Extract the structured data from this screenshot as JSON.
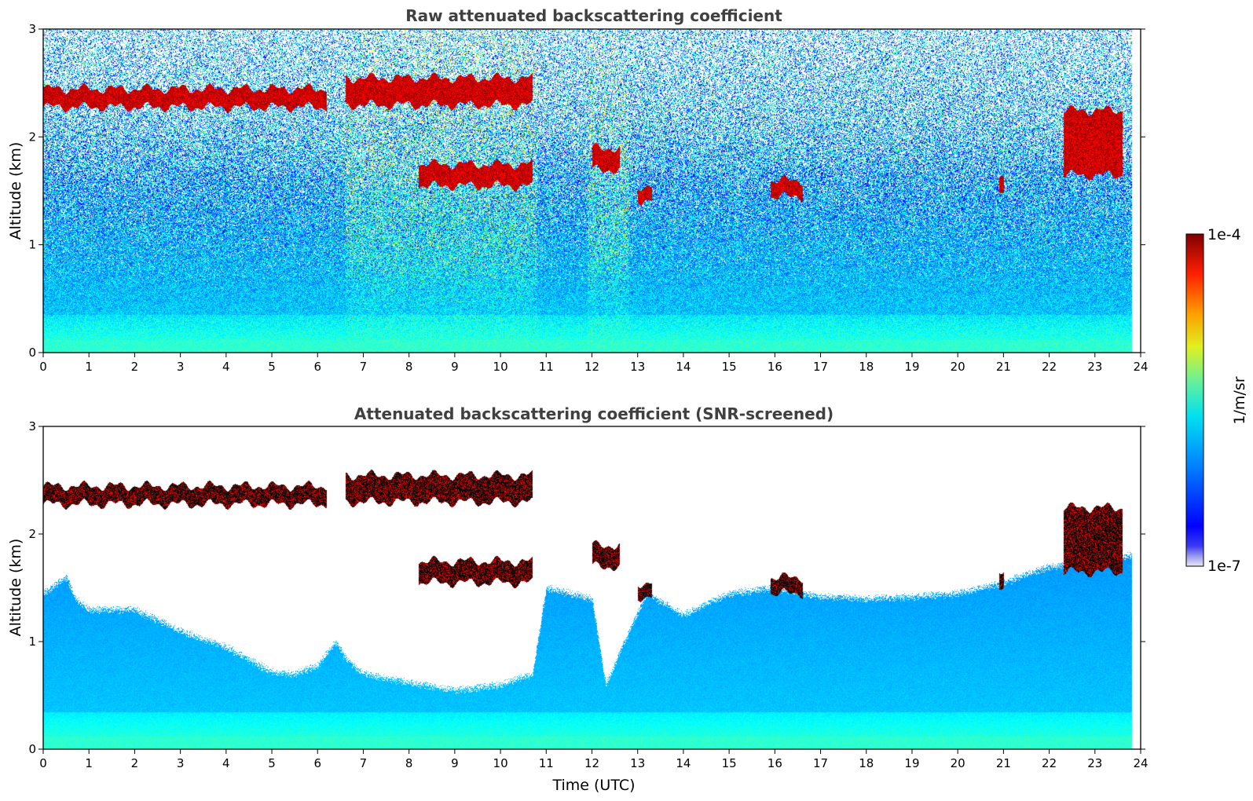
{
  "colormap": {
    "name": "jet",
    "colors": [
      "#00007f",
      "#0000ff",
      "#007fff",
      "#00ffff",
      "#7fff7f",
      "#ffff00",
      "#ff7f00",
      "#ff0000",
      "#7f0000"
    ]
  },
  "chart_data": [
    {
      "type": "heatmap",
      "title": "Raw attenuated backscattering coefficient",
      "xlabel": "",
      "ylabel": "Altitude (km)",
      "xlim": [
        0,
        24
      ],
      "ylim": [
        0,
        3
      ],
      "x_ticks": [
        0,
        1,
        2,
        3,
        4,
        5,
        6,
        7,
        8,
        9,
        10,
        11,
        12,
        13,
        14,
        15,
        16,
        17,
        18,
        19,
        20,
        21,
        22,
        23,
        24
      ],
      "y_ticks": [
        0,
        1,
        2,
        3
      ],
      "data_x_range": [
        0,
        23.8
      ],
      "cloud_layers": [
        {
          "t_start": 0.0,
          "t_end": 6.2,
          "z_km": [
            2.28,
            2.45
          ]
        },
        {
          "t_start": 6.6,
          "t_end": 10.7,
          "z_km": [
            2.3,
            2.55
          ]
        },
        {
          "t_start": 8.2,
          "t_end": 10.7,
          "z_km": [
            1.55,
            1.75
          ]
        },
        {
          "t_start": 12.0,
          "t_end": 12.6,
          "z_km": [
            1.7,
            1.9
          ]
        },
        {
          "t_start": 13.0,
          "t_end": 13.3,
          "z_km": [
            1.42,
            1.55
          ]
        },
        {
          "t_start": 15.9,
          "t_end": 16.6,
          "z_km": [
            1.45,
            1.6
          ]
        },
        {
          "t_start": 20.9,
          "t_end": 21.0,
          "z_km": [
            1.5,
            1.65
          ]
        },
        {
          "t_start": 22.3,
          "t_end": 23.6,
          "z_km": [
            1.65,
            2.25
          ]
        }
      ],
      "screened": false
    },
    {
      "type": "heatmap",
      "title": "Attenuated backscattering coefficient (SNR-screened)",
      "xlabel": "Time (UTC)",
      "ylabel": "Altitude (km)",
      "xlim": [
        0,
        24
      ],
      "ylim": [
        0,
        3
      ],
      "x_ticks": [
        0,
        1,
        2,
        3,
        4,
        5,
        6,
        7,
        8,
        9,
        10,
        11,
        12,
        13,
        14,
        15,
        16,
        17,
        18,
        19,
        20,
        21,
        22,
        23,
        24
      ],
      "y_ticks": [
        0,
        1,
        2,
        3
      ],
      "data_x_range": [
        0,
        23.8
      ],
      "cloud_layers": [
        {
          "t_start": 0.0,
          "t_end": 6.2,
          "z_km": [
            2.28,
            2.45
          ]
        },
        {
          "t_start": 6.6,
          "t_end": 10.7,
          "z_km": [
            2.3,
            2.55
          ]
        },
        {
          "t_start": 8.2,
          "t_end": 10.7,
          "z_km": [
            1.55,
            1.75
          ]
        },
        {
          "t_start": 12.0,
          "t_end": 12.6,
          "z_km": [
            1.7,
            1.9
          ]
        },
        {
          "t_start": 13.0,
          "t_end": 13.3,
          "z_km": [
            1.42,
            1.55
          ]
        },
        {
          "t_start": 15.9,
          "t_end": 16.6,
          "z_km": [
            1.45,
            1.6
          ]
        },
        {
          "t_start": 20.9,
          "t_end": 21.0,
          "z_km": [
            1.5,
            1.65
          ]
        },
        {
          "t_start": 22.3,
          "t_end": 23.6,
          "z_km": [
            1.65,
            2.25
          ]
        }
      ],
      "screened": true,
      "screen_top_km": [
        [
          0,
          1.45
        ],
        [
          0.5,
          1.6
        ],
        [
          0.7,
          1.4
        ],
        [
          1,
          1.3
        ],
        [
          2,
          1.3
        ],
        [
          3,
          1.1
        ],
        [
          4,
          0.95
        ],
        [
          5,
          0.72
        ],
        [
          5.5,
          0.7
        ],
        [
          6,
          0.78
        ],
        [
          6.4,
          1.0
        ],
        [
          6.6,
          0.85
        ],
        [
          7,
          0.7
        ],
        [
          8,
          0.62
        ],
        [
          9,
          0.55
        ],
        [
          10,
          0.6
        ],
        [
          10.7,
          0.7
        ],
        [
          11,
          1.5
        ],
        [
          12,
          1.4
        ],
        [
          12.3,
          0.6
        ],
        [
          12.7,
          1.0
        ],
        [
          13.2,
          1.45
        ],
        [
          14,
          1.25
        ],
        [
          15,
          1.45
        ],
        [
          16,
          1.5
        ],
        [
          17,
          1.42
        ],
        [
          18,
          1.4
        ],
        [
          19,
          1.42
        ],
        [
          20,
          1.45
        ],
        [
          21,
          1.55
        ],
        [
          22,
          1.7
        ],
        [
          23,
          1.75
        ],
        [
          23.8,
          1.8
        ]
      ]
    }
  ],
  "colorbar": {
    "label": "1/m/sr",
    "max_label": "1e-4",
    "min_label": "1e-7"
  }
}
